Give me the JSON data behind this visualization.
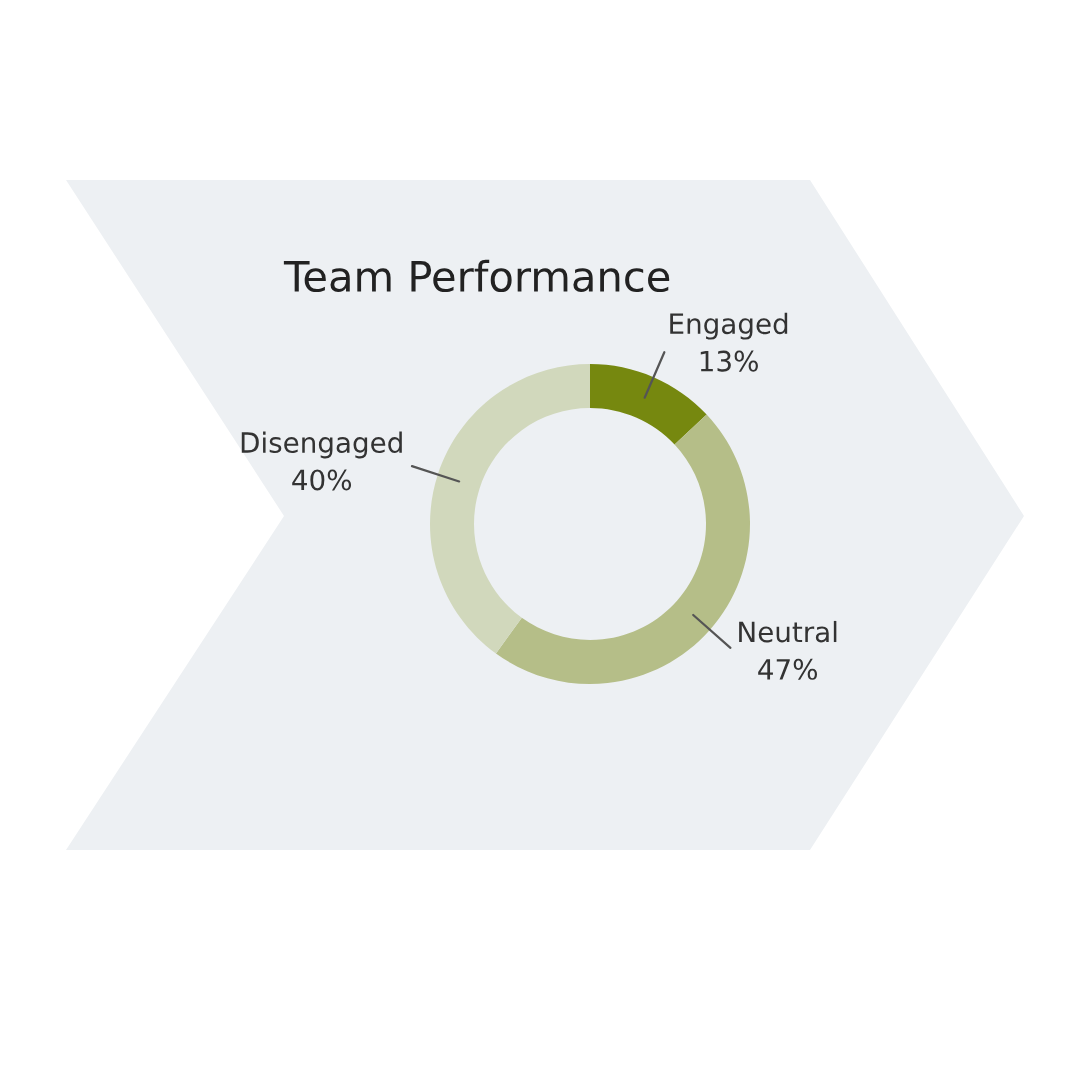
{
  "chart_data": {
    "type": "donut",
    "title": "Team Performance",
    "categories": [
      "Engaged",
      "Neutral",
      "Disengaged"
    ],
    "values": [
      13,
      47,
      40
    ],
    "value_labels": [
      "13%",
      "47%",
      "40%"
    ],
    "colors": [
      "#76880f",
      "#b5be88",
      "#d1d8bc"
    ]
  }
}
